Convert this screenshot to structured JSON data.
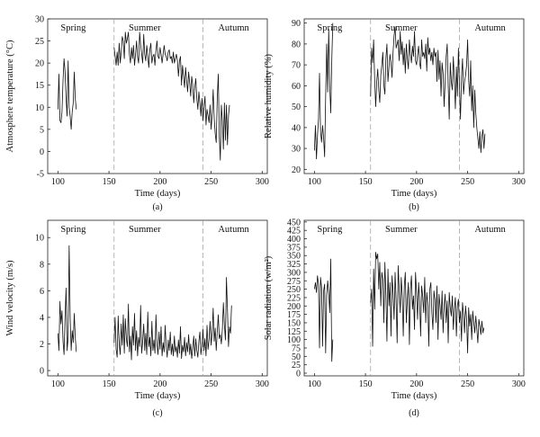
{
  "chart_data": [
    {
      "type": "line",
      "panel_label": "(a)",
      "xlabel": "Time (days)",
      "ylabel": "Atmosphere temperature (°C)",
      "xlim": [
        90,
        305
      ],
      "ylim": [
        -5,
        30
      ],
      "xticks": [
        100,
        150,
        200,
        250,
        300
      ],
      "yticks": [
        -5,
        0,
        5,
        10,
        15,
        20,
        25,
        30
      ],
      "dividers": [
        155,
        242
      ],
      "seasons": [
        {
          "label": "Spring",
          "x": 115
        },
        {
          "label": "Summer",
          "x": 185
        },
        {
          "label": "Autumn",
          "x": 272
        }
      ],
      "segments": [
        {
          "x_start": 100,
          "values": [
            9.5,
            17.5,
            7,
            6.5,
            9,
            16,
            21,
            18,
            12,
            8,
            20.5,
            10,
            8,
            5,
            9,
            11,
            18,
            12,
            9.5
          ]
        },
        {
          "x_start": 155,
          "values": [
            23.5,
            21.5,
            19.5,
            22.5,
            19.5,
            24.5,
            20,
            22.5,
            26,
            25,
            21,
            27,
            24.5,
            25.5,
            27,
            22,
            20,
            23.5,
            21,
            24,
            19.5,
            22,
            25,
            21.5,
            20,
            27,
            24,
            22,
            20,
            26.5,
            22,
            20.5,
            24,
            21.5,
            19,
            23,
            24.5,
            20,
            21.5,
            22,
            19.5,
            23,
            25,
            21.5,
            21,
            23.5,
            22,
            20,
            22,
            24,
            22,
            21.5,
            20.5,
            22.5,
            23,
            21,
            21.5,
            20,
            22.5,
            20,
            21,
            22,
            20.5,
            17,
            20.5,
            21.5,
            15,
            19.5,
            17,
            14.5,
            19,
            16,
            13.5,
            18,
            15.5,
            12.5,
            17,
            15,
            11,
            14.5,
            16.5,
            12,
            9.5,
            13.5,
            11,
            8,
            12,
            7,
            10,
            12.5,
            6,
            9.5,
            8,
            6.5,
            10.5,
            5,
            8.5,
            14,
            7.5,
            4,
            2,
            12,
            17.5,
            3.5,
            -2,
            10.5,
            7,
            0.5,
            11,
            2.5,
            10.5,
            1.5,
            8,
            10.5
          ]
        }
      ]
    },
    {
      "type": "line",
      "panel_label": "(b)",
      "xlabel": "Time (days)",
      "ylabel": "Relative humidity (%)",
      "xlim": [
        90,
        305
      ],
      "ylim": [
        18,
        92
      ],
      "xticks": [
        100,
        150,
        200,
        250,
        300
      ],
      "yticks": [
        20,
        30,
        40,
        50,
        60,
        70,
        80,
        90
      ],
      "dividers": [
        155,
        242
      ],
      "seasons": [
        {
          "label": "Spring",
          "x": 115
        },
        {
          "label": "Summer",
          "x": 185
        },
        {
          "label": "Autumn",
          "x": 272
        }
      ],
      "segments": [
        {
          "x_start": 100,
          "values": [
            29,
            41,
            25,
            36,
            44,
            66,
            38,
            33,
            41,
            35,
            26,
            55,
            80,
            57,
            87,
            60,
            47,
            72,
            90
          ]
        },
        {
          "x_start": 155,
          "values": [
            55,
            78,
            71,
            82,
            63,
            50,
            62,
            68,
            58,
            52,
            65,
            70,
            76,
            60,
            56,
            73,
            80,
            62,
            69,
            75,
            71,
            64,
            76,
            84,
            88,
            78,
            80,
            82,
            72,
            86,
            75,
            81,
            70,
            78,
            66,
            80,
            73,
            68,
            82,
            75,
            71,
            79,
            74,
            86,
            72,
            70,
            75,
            79,
            71,
            68,
            82,
            74,
            76,
            73,
            80,
            67,
            83,
            75,
            78,
            72,
            76,
            70,
            78,
            74,
            76,
            62,
            77,
            63,
            72,
            55,
            71,
            66,
            50,
            62,
            74,
            80,
            60,
            44,
            71,
            62,
            58,
            74,
            63,
            49,
            69,
            55,
            78,
            60,
            44,
            64,
            73,
            56,
            62,
            65,
            70,
            82,
            63,
            55,
            72,
            48,
            60,
            40,
            58,
            47,
            40,
            35,
            30,
            38,
            28,
            36,
            39,
            30,
            37
          ]
        }
      ]
    },
    {
      "type": "line",
      "panel_label": "(c)",
      "xlabel": "Time (days)",
      "ylabel": "Wind velocity (m/s)",
      "xlim": [
        90,
        305
      ],
      "ylim": [
        -0.4,
        11.3
      ],
      "xticks": [
        100,
        150,
        200,
        250,
        300
      ],
      "yticks": [
        0,
        2,
        4,
        6,
        8,
        10
      ],
      "dividers": [
        155,
        242
      ],
      "seasons": [
        {
          "label": "Spring",
          "x": 115
        },
        {
          "label": "Summer",
          "x": 185
        },
        {
          "label": "Autumn",
          "x": 272
        }
      ],
      "segments": [
        {
          "x_start": 100,
          "values": [
            2.8,
            1.5,
            5.2,
            3.5,
            4.5,
            2.2,
            1.2,
            4,
            6.2,
            1.5,
            2.5,
            9.4,
            4,
            1.5,
            3,
            2.1,
            4.3,
            2.5,
            1.4
          ]
        },
        {
          "x_start": 155,
          "values": [
            2.1,
            4,
            1.6,
            1,
            4.1,
            2,
            1.2,
            3.5,
            1.9,
            4.2,
            1.3,
            3.9,
            2.4,
            1.8,
            5,
            1.4,
            2.6,
            0.8,
            3.3,
            1.9,
            4.3,
            1.5,
            3,
            1.1,
            2.5,
            1.8,
            4.9,
            1.3,
            2.2,
            3.5,
            1.5,
            2.8,
            1.2,
            4.4,
            1.8,
            2.5,
            1.1,
            3.7,
            1.5,
            2.3,
            1.3,
            4.2,
            2,
            1.2,
            2.9,
            1.6,
            3.3,
            1.1,
            2.1,
            1.4,
            3.4,
            1.8,
            1,
            2.3,
            1.5,
            2.9,
            1.2,
            2,
            1.1,
            2.6,
            1.4,
            1.8,
            1,
            2.3,
            1.3,
            3.3,
            0.9,
            1.9,
            1.4,
            2.5,
            1.1,
            2.1,
            1.4,
            2.7,
            1.2,
            2,
            0.9,
            1.7,
            2.6,
            1.1,
            2.4,
            1.5,
            1,
            2.2,
            2.9,
            1.2,
            1.8,
            3.1,
            1.5,
            2.4,
            1.1,
            3.4,
            1.6,
            2.3,
            3.7,
            1.9,
            2.9,
            4.7,
            2.2,
            3.2,
            1.5,
            2.9,
            4.2,
            2.4,
            2.7,
            2,
            3.1,
            5.1,
            3.4,
            2.3,
            7,
            4.6,
            1.8,
            3.3,
            2.8,
            4.9
          ]
        }
      ]
    },
    {
      "type": "line",
      "panel_label": "(d)",
      "xlabel": "Time (days)",
      "ylabel": "Solar radiation (w/m²)",
      "xlim": [
        90,
        305
      ],
      "ylim": [
        -8,
        455
      ],
      "xticks": [
        100,
        150,
        200,
        250,
        300
      ],
      "yticks": [
        0,
        25,
        50,
        75,
        100,
        125,
        150,
        175,
        200,
        225,
        250,
        275,
        300,
        325,
        350,
        375,
        400,
        425,
        450
      ],
      "dividers": [
        155,
        242
      ],
      "seasons": [
        {
          "label": "Spring",
          "x": 115
        },
        {
          "label": "Summer",
          "x": 185
        },
        {
          "label": "Autumn",
          "x": 272
        }
      ],
      "segments": [
        {
          "x_start": 100,
          "values": [
            250,
            270,
            240,
            290,
            265,
            75,
            285,
            255,
            80,
            245,
            265,
            60,
            230,
            275,
            240,
            180,
            340,
            35,
            100
          ]
        },
        {
          "x_start": 155,
          "values": [
            210,
            250,
            80,
            310,
            190,
            360,
            340,
            355,
            250,
            330,
            200,
            300,
            280,
            150,
            330,
            230,
            95,
            310,
            200,
            270,
            110,
            290,
            240,
            160,
            300,
            215,
            90,
            320,
            250,
            180,
            285,
            230,
            110,
            260,
            300,
            150,
            220,
            270,
            85,
            250,
            290,
            190,
            230,
            130,
            300,
            240,
            160,
            270,
            215,
            110,
            260,
            230,
            180,
            285,
            150,
            240,
            205,
            80,
            250,
            270,
            180,
            130,
            245,
            220,
            150,
            260,
            100,
            235,
            200,
            160,
            245,
            120,
            200,
            235,
            150,
            215,
            90,
            240,
            195,
            170,
            230,
            130,
            190,
            225,
            110,
            200,
            220,
            150,
            185,
            95,
            210,
            175,
            120,
            200,
            160,
            60,
            195,
            140,
            175,
            100,
            185,
            150,
            120,
            170,
            130,
            90,
            160,
            140,
            115,
            155,
            120,
            135
          ]
        }
      ]
    }
  ]
}
